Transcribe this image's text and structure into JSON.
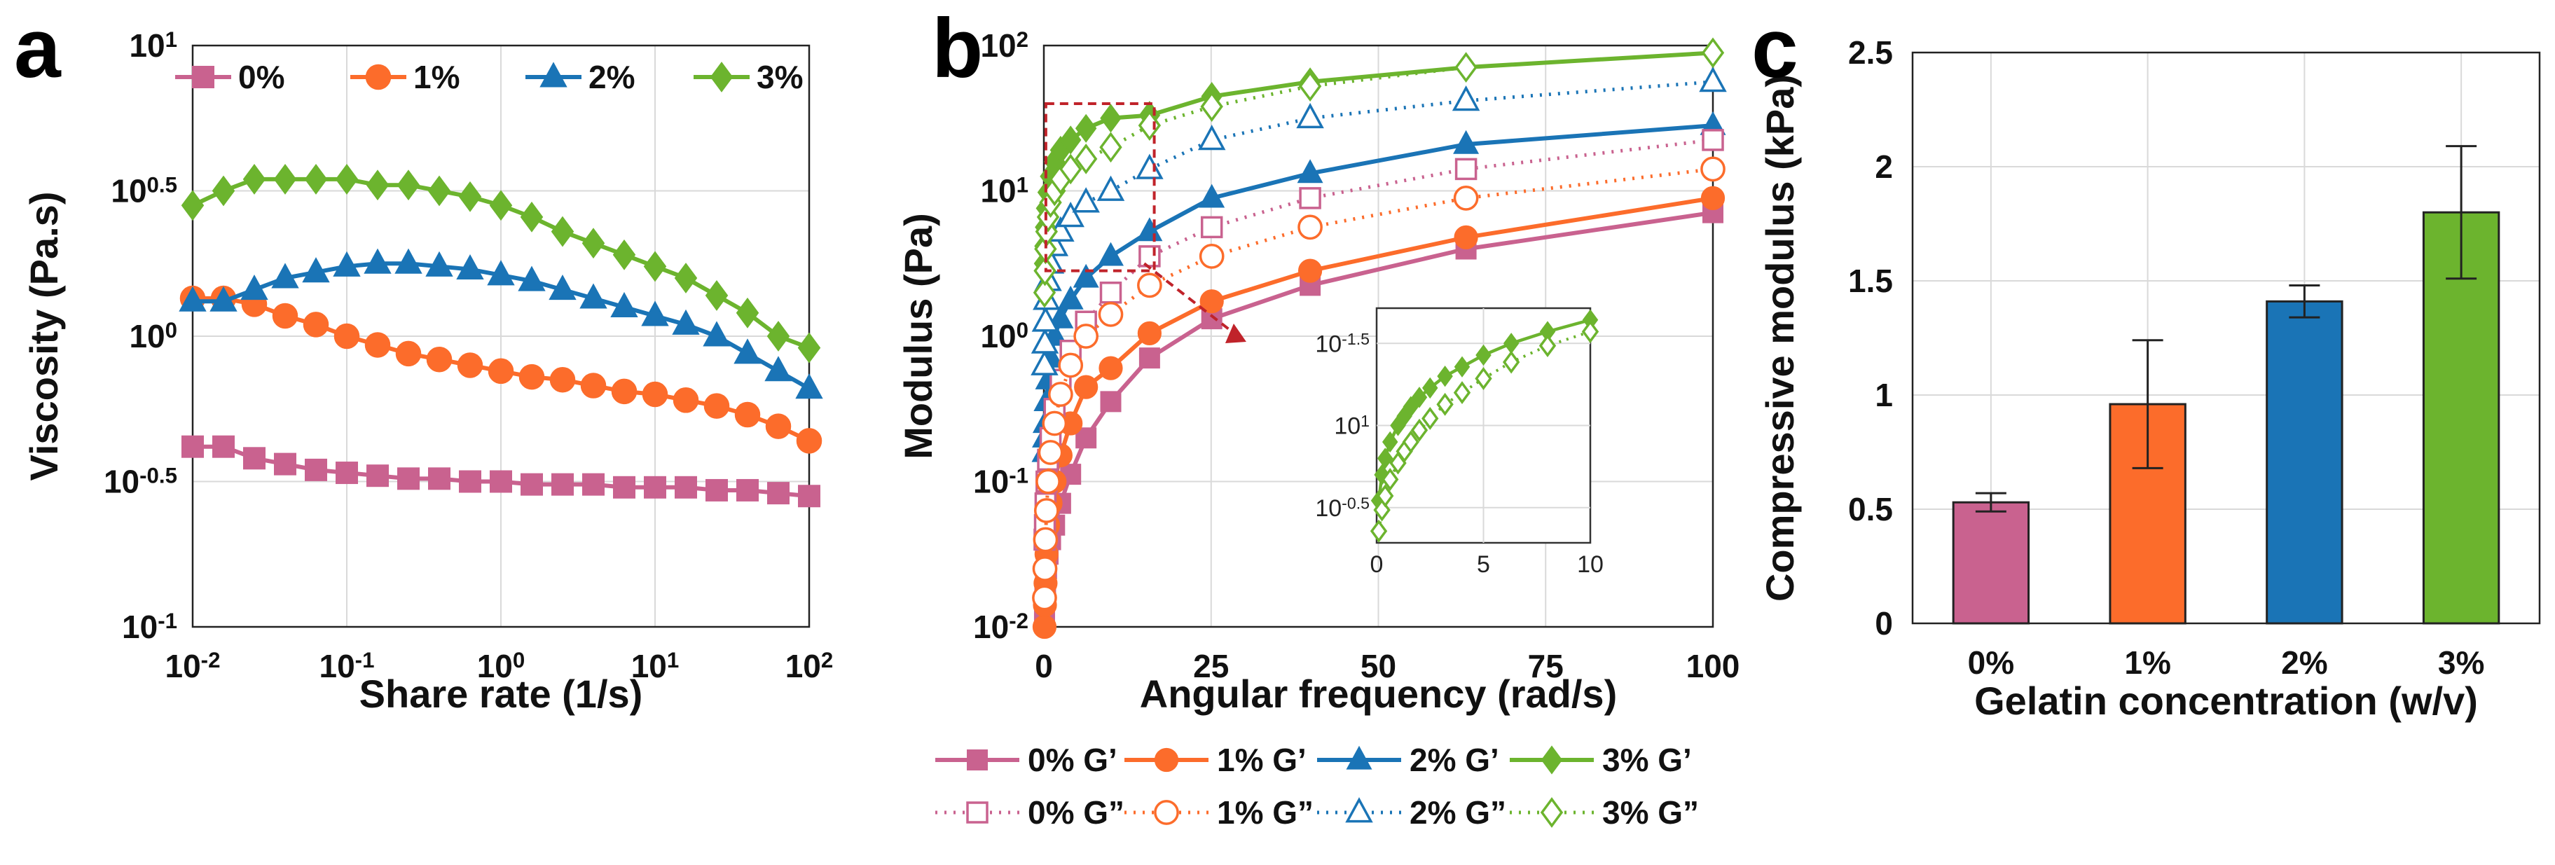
{
  "colors": {
    "c0": "#c9628f",
    "c1": "#fc6c2b",
    "c2": "#1a74b6",
    "c3": "#6cb42e",
    "inset_arrow": "#c0232a"
  },
  "labels": {
    "a": "a",
    "b": "b",
    "c": "c"
  },
  "chart_data": [
    {
      "type": "line",
      "panel": "a",
      "xlabel": "Share rate (1/s)",
      "ylabel": "Viscosity (Pa.s)",
      "xscale": "log",
      "yscale": "log",
      "xlim": [
        0.01,
        100
      ],
      "ylim": [
        0.1,
        10
      ],
      "xticks": [
        {
          "base": "10",
          "exp": "-2"
        },
        {
          "base": "10",
          "exp": "-1"
        },
        {
          "base": "10",
          "exp": "0"
        },
        {
          "base": "10",
          "exp": "1"
        },
        {
          "base": "10",
          "exp": "2"
        }
      ],
      "yticks": [
        {
          "base": "10",
          "exp": "-1"
        },
        {
          "base": "10",
          "exp": "-0.5"
        },
        {
          "base": "10",
          "exp": "0"
        },
        {
          "base": "10",
          "exp": "0.5"
        },
        {
          "base": "10",
          "exp": "1"
        }
      ],
      "grid": true,
      "legend": "top",
      "series": [
        {
          "name": "0%",
          "marker": "square",
          "log10x": [
            -2,
            -1.8,
            -1.6,
            -1.4,
            -1.2,
            -1,
            -0.8,
            -0.6,
            -0.4,
            -0.2,
            0,
            0.2,
            0.4,
            0.6,
            0.8,
            1,
            1.2,
            1.4,
            1.6,
            1.8,
            2
          ],
          "log10y": [
            -0.38,
            -0.38,
            -0.42,
            -0.44,
            -0.46,
            -0.47,
            -0.48,
            -0.49,
            -0.49,
            -0.5,
            -0.5,
            -0.51,
            -0.51,
            -0.51,
            -0.52,
            -0.52,
            -0.52,
            -0.53,
            -0.53,
            -0.54,
            -0.55
          ]
        },
        {
          "name": "1%",
          "marker": "circle",
          "log10x": [
            -2,
            -1.8,
            -1.6,
            -1.4,
            -1.2,
            -1,
            -0.8,
            -0.6,
            -0.4,
            -0.2,
            0,
            0.2,
            0.4,
            0.6,
            0.8,
            1,
            1.2,
            1.4,
            1.6,
            1.8,
            2
          ],
          "log10y": [
            0.13,
            0.13,
            0.11,
            0.07,
            0.04,
            0,
            -0.03,
            -0.06,
            -0.08,
            -0.1,
            -0.12,
            -0.14,
            -0.15,
            -0.17,
            -0.19,
            -0.2,
            -0.22,
            -0.24,
            -0.27,
            -0.31,
            -0.36
          ]
        },
        {
          "name": "2%",
          "marker": "triangle",
          "log10x": [
            -2,
            -1.8,
            -1.6,
            -1.4,
            -1.2,
            -1,
            -0.8,
            -0.6,
            -0.4,
            -0.2,
            0,
            0.2,
            0.4,
            0.6,
            0.8,
            1,
            1.2,
            1.4,
            1.6,
            1.8,
            2
          ],
          "log10y": [
            0.12,
            0.12,
            0.16,
            0.2,
            0.22,
            0.24,
            0.25,
            0.25,
            0.24,
            0.23,
            0.21,
            0.19,
            0.16,
            0.13,
            0.1,
            0.07,
            0.04,
            0,
            -0.06,
            -0.12,
            -0.18
          ]
        },
        {
          "name": "3%",
          "marker": "diamond",
          "log10x": [
            -2,
            -1.8,
            -1.6,
            -1.4,
            -1.2,
            -1,
            -0.8,
            -0.6,
            -0.4,
            -0.2,
            0,
            0.2,
            0.4,
            0.6,
            0.8,
            1,
            1.2,
            1.4,
            1.6,
            1.8,
            2
          ],
          "log10y": [
            0.45,
            0.5,
            0.54,
            0.54,
            0.54,
            0.54,
            0.52,
            0.52,
            0.5,
            0.48,
            0.45,
            0.41,
            0.36,
            0.32,
            0.28,
            0.24,
            0.2,
            0.14,
            0.08,
            0,
            -0.04
          ]
        }
      ]
    },
    {
      "type": "line",
      "panel": "b",
      "xlabel": "Angular frequency (rad/s)",
      "ylabel": "Modulus (Pa)",
      "xscale": "linear",
      "yscale": "log",
      "xlim": [
        0,
        100
      ],
      "ylim": [
        0.01,
        100
      ],
      "xticks": [
        "0",
        "25",
        "50",
        "75",
        "100"
      ],
      "yticks": [
        {
          "base": "10",
          "exp": "-2"
        },
        {
          "base": "10",
          "exp": "-1"
        },
        {
          "base": "10",
          "exp": "0"
        },
        {
          "base": "10",
          "exp": "1"
        },
        {
          "base": "10",
          "exp": "2"
        }
      ],
      "grid": true,
      "legend": "below",
      "legend_entries": [
        "0% G’",
        "1% G’",
        "2% G’",
        "3% G’",
        "0% G”",
        "1% G”",
        "2% G”",
        "3% G”"
      ],
      "x": [
        0.1,
        0.16,
        0.25,
        0.4,
        0.63,
        1,
        1.6,
        2.5,
        4,
        6.3,
        10,
        15.8,
        25.1,
        39.8,
        63.1,
        100
      ],
      "series": [
        {
          "name": "0% G’",
          "color": "c0",
          "marker": "square",
          "filled": true,
          "dashed": false,
          "log10y": [
            -1.9,
            -1.8,
            -1.7,
            -1.6,
            -1.5,
            -1.4,
            -1.3,
            -1.15,
            -0.95,
            -0.7,
            -0.45,
            -0.15,
            0.12,
            0.35,
            0.6,
            0.85
          ]
        },
        {
          "name": "1% G’",
          "color": "c1",
          "marker": "circle",
          "filled": true,
          "dashed": false,
          "log10y": [
            -2,
            -1.85,
            -1.7,
            -1.5,
            -1.3,
            -1.15,
            -1,
            -0.82,
            -0.6,
            -0.35,
            -0.22,
            0.02,
            0.24,
            0.45,
            0.68,
            0.95
          ]
        },
        {
          "name": "2% G’",
          "color": "c2",
          "marker": "triangle",
          "filled": true,
          "dashed": false,
          "log10y": [
            -0.8,
            -0.7,
            -0.6,
            -0.45,
            -0.3,
            -0.15,
            0,
            0.12,
            0.25,
            0.4,
            0.55,
            0.72,
            0.95,
            1.12,
            1.32,
            1.45
          ]
        },
        {
          "name": "3% G’",
          "color": "c3",
          "marker": "diamond",
          "filled": true,
          "dashed": false,
          "log10y": [
            0.5,
            0.62,
            0.75,
            0.88,
            0.99,
            1.1,
            1.2,
            1.28,
            1.35,
            1.43,
            1.5,
            1.52,
            1.65,
            1.75,
            1.85,
            1.95
          ]
        },
        {
          "name": "0% G”",
          "color": "c0",
          "marker": "square",
          "filled": false,
          "dashed": true,
          "log10y": [
            -1.4,
            -1.3,
            -1.15,
            -1.0,
            -0.85,
            -0.7,
            -0.5,
            -0.3,
            -0.1,
            0.1,
            0.3,
            0.55,
            0.75,
            0.95,
            1.15,
            1.35
          ]
        },
        {
          "name": "1% G”",
          "color": "c1",
          "marker": "circle",
          "filled": false,
          "dashed": true,
          "log10y": [
            -1.8,
            -1.6,
            -1.4,
            -1.2,
            -1.0,
            -0.8,
            -0.6,
            -0.4,
            -0.2,
            0,
            0.15,
            0.35,
            0.55,
            0.75,
            0.95,
            1.15
          ]
        },
        {
          "name": "2% G”",
          "color": "c2",
          "marker": "triangle",
          "filled": false,
          "dashed": true,
          "log10y": [
            -0.2,
            -0.05,
            0.1,
            0.25,
            0.38,
            0.5,
            0.62,
            0.72,
            0.82,
            0.92,
            1.0,
            1.15,
            1.35,
            1.5,
            1.62,
            1.75
          ]
        },
        {
          "name": "3% G”",
          "color": "c3",
          "marker": "diamond",
          "filled": false,
          "dashed": true,
          "log10y": [
            0.3,
            0.45,
            0.6,
            0.72,
            0.82,
            0.92,
            1.0,
            1.08,
            1.15,
            1.22,
            1.3,
            1.45,
            1.58,
            1.72,
            1.85,
            1.95
          ]
        }
      ],
      "inset": {
        "xlim": [
          0,
          10
        ],
        "xticks": [
          "0",
          "5",
          "10"
        ],
        "yticks": [
          {
            "base": "10",
            "exp": "-1.5"
          },
          {
            "base": "10",
            "exp": "1"
          },
          {
            "base": "10",
            "exp": "-0.5"
          }
        ],
        "x": [
          0.1,
          0.25,
          0.4,
          0.63,
          1,
          1.3,
          1.6,
          2,
          2.5,
          3.2,
          4,
          5,
          6.3,
          8,
          10
        ],
        "series": [
          {
            "name": "3% G’",
            "color": "c3",
            "marker": "diamond",
            "filled": true,
            "dashed": false,
            "rel": [
              0.18,
              0.29,
              0.36,
              0.43,
              0.5,
              0.54,
              0.58,
              0.62,
              0.66,
              0.71,
              0.75,
              0.8,
              0.85,
              0.9,
              0.95
            ]
          },
          {
            "name": "3% G”",
            "color": "c3",
            "marker": "diamond",
            "filled": false,
            "dashed": true,
            "rel": [
              0.05,
              0.14,
              0.2,
              0.27,
              0.34,
              0.39,
              0.43,
              0.48,
              0.53,
              0.59,
              0.64,
              0.7,
              0.77,
              0.84,
              0.9
            ]
          }
        ]
      }
    },
    {
      "type": "bar",
      "panel": "c",
      "xlabel": "Gelatin concentration (w/v)",
      "ylabel": "Compressive modulus (kPa)",
      "categories": [
        "0%",
        "1%",
        "2%",
        "3%"
      ],
      "values": [
        0.53,
        0.96,
        1.41,
        1.8
      ],
      "errors": [
        0.04,
        0.28,
        0.07,
        0.29
      ],
      "ylim": [
        0,
        2.5
      ],
      "yticks": [
        "0",
        "0.5",
        "1",
        "1.5",
        "2",
        "2.5"
      ],
      "grid": true
    }
  ]
}
